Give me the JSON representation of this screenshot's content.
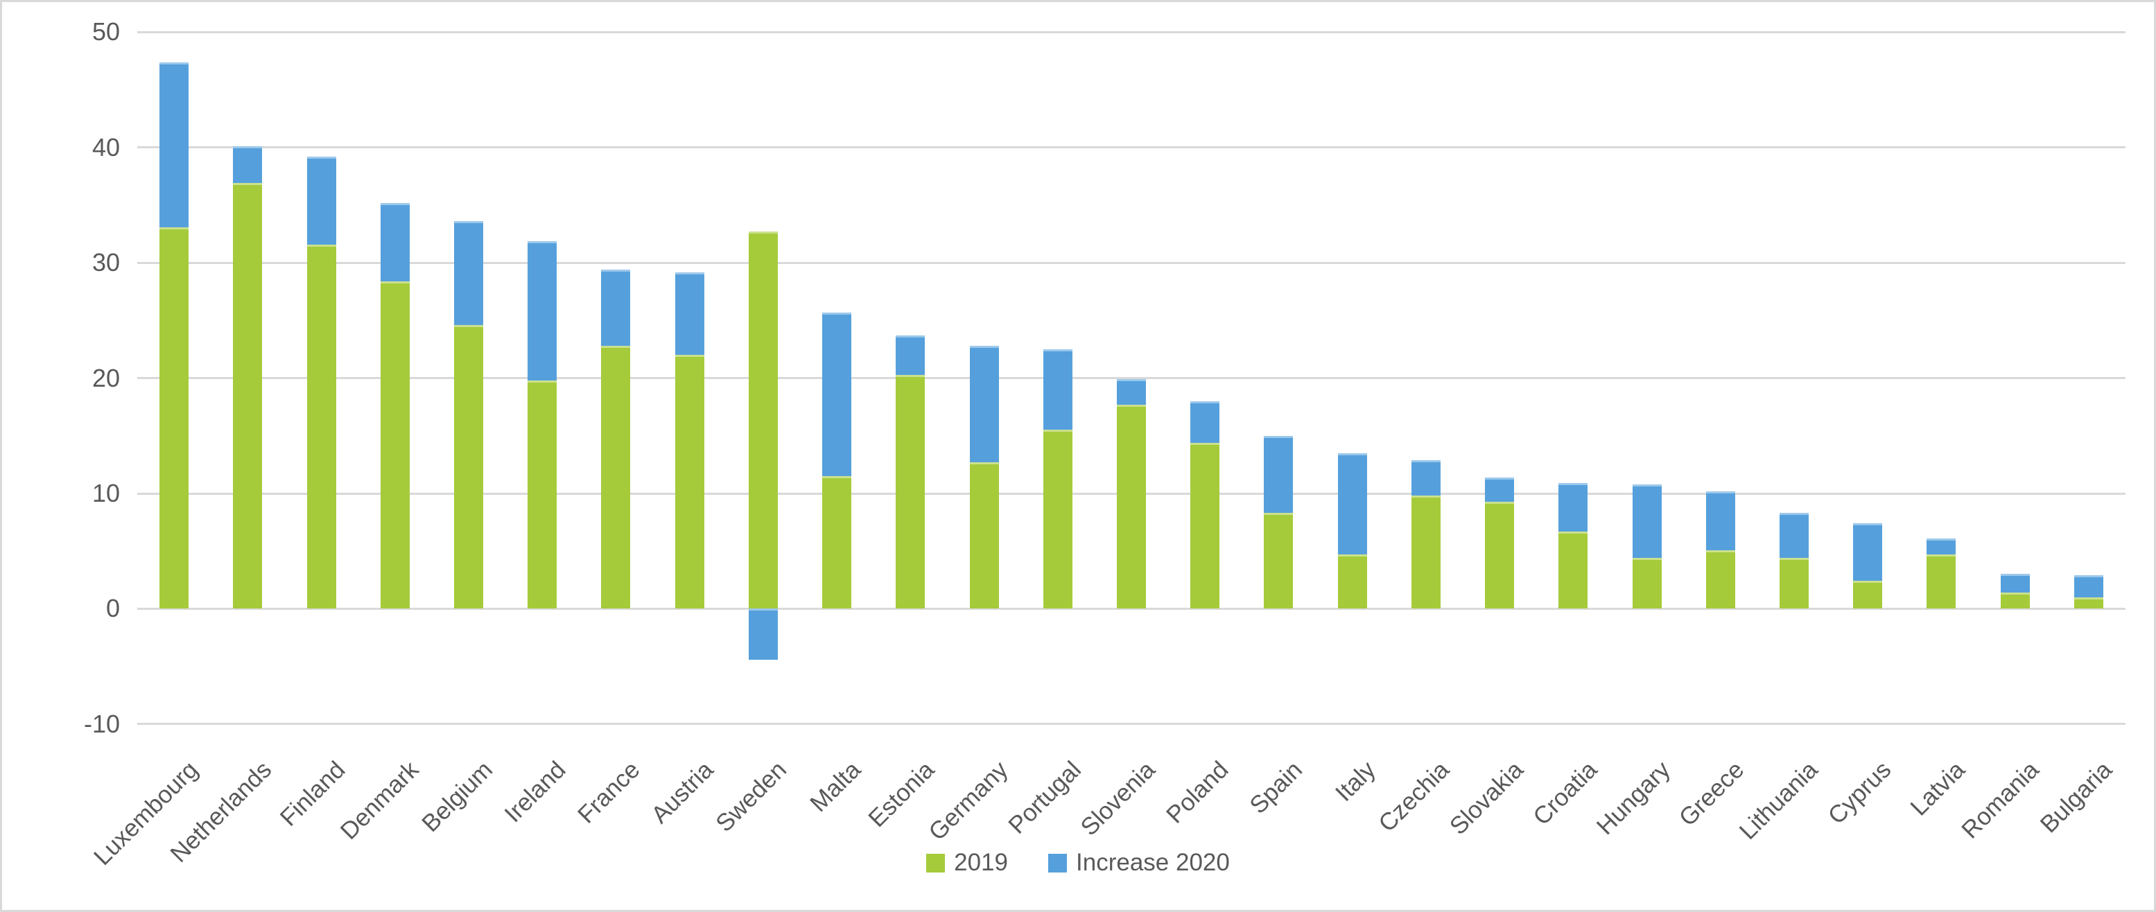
{
  "chart_data": {
    "type": "bar",
    "stacked": true,
    "title": "",
    "categories": [
      "Luxembourg",
      "Netherlands",
      "Finland",
      "Denmark",
      "Belgium",
      "Ireland",
      "France",
      "Austria",
      "Sweden",
      "Malta",
      "Estonia",
      "Germany",
      "Portugal",
      "Slovenia",
      "Poland",
      "Spain",
      "Italy",
      "Czechia",
      "Slovakia",
      "Croatia",
      "Hungary",
      "Greece",
      "Lithuania",
      "Cyprus",
      "Latvia",
      "Romania",
      "Bulgaria"
    ],
    "series": [
      {
        "name": "2019",
        "color": "#A5CB3B",
        "values": [
          33.1,
          36.9,
          31.6,
          28.4,
          24.6,
          19.8,
          22.8,
          22.0,
          32.7,
          11.5,
          20.3,
          12.7,
          15.5,
          17.7,
          14.4,
          8.3,
          4.7,
          9.8,
          9.3,
          6.7,
          4.4,
          5.1,
          4.4,
          2.4,
          4.7,
          1.4,
          1.0
        ]
      },
      {
        "name": "Increase 2020",
        "color": "#55A0DC",
        "values": [
          14.3,
          3.2,
          7.6,
          6.8,
          9.0,
          12.1,
          6.6,
          7.2,
          -4.4,
          14.2,
          3.4,
          10.1,
          7.0,
          2.2,
          3.6,
          6.7,
          8.8,
          3.1,
          2.1,
          4.2,
          6.4,
          5.1,
          3.9,
          5.0,
          1.4,
          1.6,
          1.9
        ]
      }
    ],
    "xlabel": "",
    "ylabel": "",
    "ylim": [
      -10,
      50
    ],
    "yticks": [
      50,
      40,
      30,
      20,
      10,
      0,
      -10
    ],
    "ytick_labels": [
      "50",
      "40",
      "30",
      "20",
      "10",
      "0",
      "-10"
    ],
    "grid": true,
    "gridline_color": "#D9D9D9",
    "axis_text_color": "#595959",
    "legend_position": "bottom-center",
    "x_label_rotation_deg": -45
  }
}
